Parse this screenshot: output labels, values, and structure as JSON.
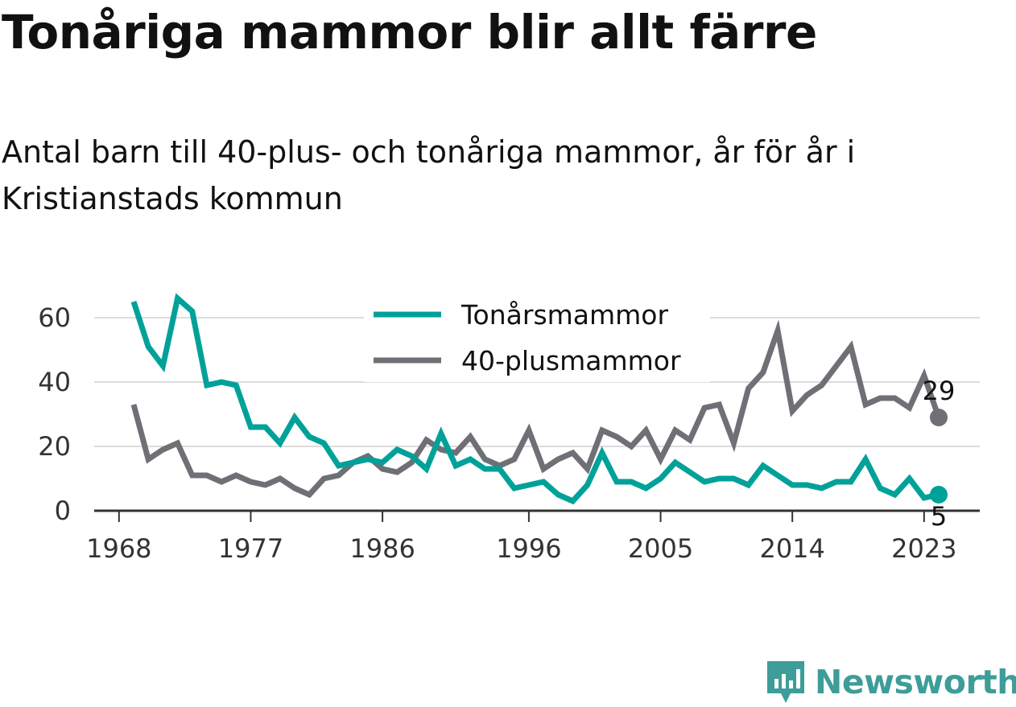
{
  "title": "Tonåriga mammor blir allt färre",
  "subtitle": "Antal barn till 40-plus- och tonåriga mammor, år för år i Kristianstads kommun",
  "logo": {
    "text": "Newsworthy",
    "icon": "newsworthy-logo-icon",
    "color": "#3d9d98"
  },
  "chart_data": {
    "type": "line",
    "x_ticks": [
      "1968",
      "1977",
      "1986",
      "1996",
      "2005",
      "2014",
      "2023"
    ],
    "y_ticks": [
      "0",
      "20",
      "40",
      "60"
    ],
    "ylim": [
      0,
      66
    ],
    "grid": true,
    "legend_position": "top-center",
    "x": [
      1969,
      1970,
      1971,
      1972,
      1973,
      1974,
      1975,
      1976,
      1977,
      1978,
      1979,
      1980,
      1981,
      1982,
      1983,
      1984,
      1985,
      1986,
      1987,
      1988,
      1989,
      1990,
      1991,
      1992,
      1993,
      1994,
      1995,
      1996,
      1997,
      1998,
      1999,
      2000,
      2001,
      2002,
      2003,
      2004,
      2005,
      2006,
      2007,
      2008,
      2009,
      2010,
      2011,
      2012,
      2013,
      2014,
      2015,
      2016,
      2017,
      2018,
      2019,
      2020,
      2021,
      2022,
      2023,
      2024
    ],
    "series": [
      {
        "name": "Tonårsmammor",
        "color": "#00a199",
        "end_label": "5",
        "values": [
          65,
          51,
          45,
          66,
          62,
          39,
          40,
          39,
          26,
          26,
          21,
          29,
          23,
          21,
          14,
          15,
          16,
          15,
          19,
          17,
          13,
          24,
          14,
          16,
          13,
          13,
          7,
          8,
          9,
          5,
          3,
          8,
          18,
          9,
          9,
          7,
          10,
          15,
          12,
          9,
          10,
          10,
          8,
          14,
          11,
          8,
          8,
          7,
          9,
          9,
          16,
          7,
          5,
          10,
          4,
          5
        ]
      },
      {
        "name": "40-plusmammor",
        "color": "#6f6f76",
        "end_label": "29",
        "values": [
          33,
          16,
          19,
          21,
          11,
          11,
          9,
          11,
          9,
          8,
          10,
          7,
          5,
          10,
          11,
          15,
          17,
          13,
          12,
          15,
          22,
          19,
          18,
          23,
          16,
          14,
          16,
          25,
          13,
          16,
          18,
          13,
          25,
          23,
          20,
          25,
          16,
          25,
          22,
          32,
          33,
          21,
          38,
          43,
          56,
          31,
          36,
          39,
          45,
          51,
          33,
          35,
          35,
          32,
          42,
          29
        ]
      }
    ]
  }
}
